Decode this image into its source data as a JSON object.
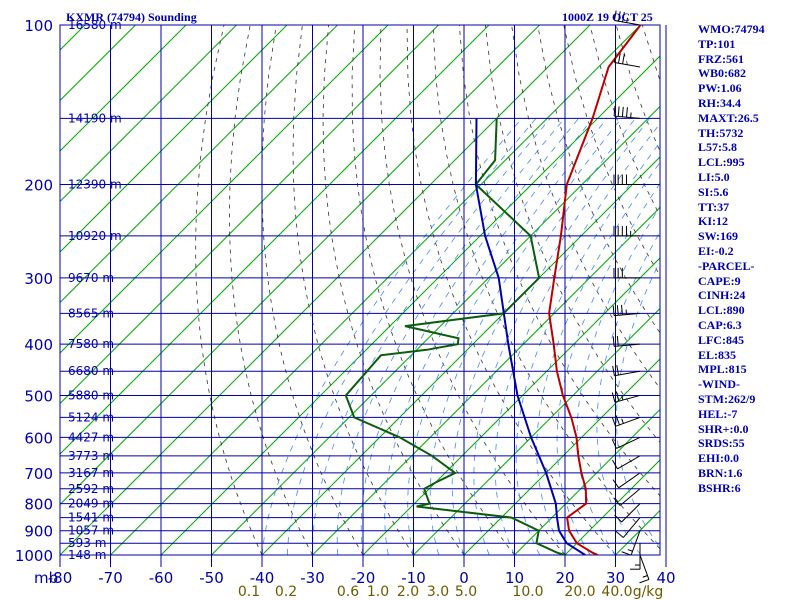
{
  "header": {
    "title": "KXMR (74794) Sounding",
    "datetime": "1000Z 19 OCT 25"
  },
  "stats": [
    "WMO:74794",
    "TP:101",
    "FRZ:561",
    "WB0:682",
    "PW:1.06",
    "RH:34.4",
    "MAXT:26.5",
    "TH:5732",
    "L57:5.8",
    "LCL:995",
    "LI:5.0",
    "SI:5.6",
    "TT:37",
    "KI:12",
    "SW:169",
    "EI:-0.2",
    "-PARCEL-",
    "CAPE:9",
    "CINH:24",
    "LCL:890",
    "CAP:6.3",
    "LFC:845",
    "EL:835",
    "MPL:815",
    "-WIND-",
    "STM:262/9",
    "HEL:-7",
    "SHR+:0.0",
    "SRDS:55",
    "EHI:0.0",
    "BRN:1.6",
    "BSHR:6"
  ],
  "chart_data": {
    "type": "line",
    "title": "KXMR (74794) Sounding",
    "xlabel": "",
    "ylabel": "mb",
    "y_scale": "log-pressure",
    "ylim": [
      1000,
      100
    ],
    "xlim": [
      -80,
      40
    ],
    "pressure_ticks": [
      {
        "p": 100,
        "label": "100"
      },
      {
        "p": 200,
        "label": "200"
      },
      {
        "p": 300,
        "label": "300"
      },
      {
        "p": 400,
        "label": "400"
      },
      {
        "p": 500,
        "label": "500"
      },
      {
        "p": 600,
        "label": "600"
      },
      {
        "p": 700,
        "label": "700"
      },
      {
        "p": 800,
        "label": "800"
      },
      {
        "p": 900,
        "label": "900"
      },
      {
        "p": 1000,
        "label": "1000"
      }
    ],
    "height_labels": [
      {
        "p": 100,
        "label": "16580 m"
      },
      {
        "p": 150,
        "label": "14190 m"
      },
      {
        "p": 200,
        "label": "12390 m"
      },
      {
        "p": 250,
        "label": "10920 m"
      },
      {
        "p": 300,
        "label": "9670 m"
      },
      {
        "p": 350,
        "label": "8565 m"
      },
      {
        "p": 400,
        "label": "7580 m"
      },
      {
        "p": 450,
        "label": "6680 m"
      },
      {
        "p": 500,
        "label": "5880 m"
      },
      {
        "p": 550,
        "label": "5124 m"
      },
      {
        "p": 600,
        "label": "4427 m"
      },
      {
        "p": 650,
        "label": "3773 m"
      },
      {
        "p": 700,
        "label": "3167 m"
      },
      {
        "p": 750,
        "label": "2592 m"
      },
      {
        "p": 800,
        "label": "2049 m"
      },
      {
        "p": 850,
        "label": "1541 m"
      },
      {
        "p": 900,
        "label": "1057 m"
      },
      {
        "p": 950,
        "label": "593 m"
      },
      {
        "p": 1000,
        "label": "148 m"
      }
    ],
    "temperature_ticks": [
      "-80",
      "-70",
      "-60",
      "-50",
      "-40",
      "-30",
      "-20",
      "-10",
      "0",
      "10",
      "20",
      "30",
      "40"
    ],
    "mixing_ratio_ticks": [
      {
        "value": 0.1,
        "label": "0.1"
      },
      {
        "value": 0.2,
        "label": "0.2"
      },
      {
        "value": 0.6,
        "label": "0.6"
      },
      {
        "value": 1.0,
        "label": "1.0"
      },
      {
        "value": 2.0,
        "label": "2.0"
      },
      {
        "value": 3.0,
        "label": "3.0"
      },
      {
        "value": 5.0,
        "label": "5.0"
      },
      {
        "value": 10.0,
        "label": "10.0"
      },
      {
        "value": 20.0,
        "label": "20.0"
      },
      {
        "value": 40.0,
        "label": "40.0"
      }
    ],
    "mixing_ratio_unit": "g/kg",
    "series": [
      {
        "color": "#bb0000",
        "points": [
          [
            100,
            -70
          ],
          [
            120,
            -68
          ],
          [
            150,
            -61
          ],
          [
            200,
            -53
          ],
          [
            250,
            -44
          ],
          [
            300,
            -37
          ],
          [
            350,
            -31
          ],
          [
            400,
            -24
          ],
          [
            450,
            -18
          ],
          [
            500,
            -12
          ],
          [
            550,
            -6
          ],
          [
            600,
            -1
          ],
          [
            650,
            3
          ],
          [
            700,
            7
          ],
          [
            750,
            11
          ],
          [
            800,
            14
          ],
          [
            850,
            13
          ],
          [
            900,
            16
          ],
          [
            950,
            20
          ],
          [
            990,
            25
          ],
          [
            1000,
            26.5
          ]
        ]
      },
      {
        "color": "#0b5d0b",
        "points": [
          [
            150,
            -80
          ],
          [
            180,
            -72
          ],
          [
            200,
            -71
          ],
          [
            250,
            -50
          ],
          [
            300,
            -40
          ],
          [
            350,
            -40
          ],
          [
            370,
            -57
          ],
          [
            390,
            -44
          ],
          [
            400,
            -43
          ],
          [
            410,
            -48
          ],
          [
            420,
            -56
          ],
          [
            500,
            -55
          ],
          [
            550,
            -49
          ],
          [
            600,
            -36
          ],
          [
            650,
            -26
          ],
          [
            700,
            -18
          ],
          [
            730,
            -20
          ],
          [
            750,
            -21
          ],
          [
            800,
            -17
          ],
          [
            810,
            -19
          ],
          [
            850,
            2
          ],
          [
            900,
            10
          ],
          [
            950,
            12
          ],
          [
            990,
            18
          ],
          [
            1000,
            20
          ]
        ]
      },
      {
        "color": "#0000aa",
        "points": [
          [
            150,
            -84
          ],
          [
            200,
            -71
          ],
          [
            250,
            -59
          ],
          [
            300,
            -48
          ],
          [
            400,
            -33
          ],
          [
            500,
            -21
          ],
          [
            600,
            -10
          ],
          [
            700,
            0
          ],
          [
            800,
            8
          ],
          [
            850,
            11
          ],
          [
            900,
            14
          ],
          [
            950,
            18
          ],
          [
            1000,
            24
          ]
        ]
      }
    ],
    "winds": [
      {
        "p": 100,
        "dir": 280,
        "spd": 25
      },
      {
        "p": 120,
        "dir": 280,
        "spd": 30
      },
      {
        "p": 150,
        "dir": 275,
        "spd": 35
      },
      {
        "p": 200,
        "dir": 270,
        "spd": 40
      },
      {
        "p": 250,
        "dir": 270,
        "spd": 35
      },
      {
        "p": 300,
        "dir": 270,
        "spd": 30
      },
      {
        "p": 350,
        "dir": 265,
        "spd": 25
      },
      {
        "p": 400,
        "dir": 265,
        "spd": 20
      },
      {
        "p": 450,
        "dir": 260,
        "spd": 20
      },
      {
        "p": 500,
        "dir": 255,
        "spd": 15
      },
      {
        "p": 550,
        "dir": 250,
        "spd": 15
      },
      {
        "p": 600,
        "dir": 245,
        "spd": 10
      },
      {
        "p": 650,
        "dir": 240,
        "spd": 10
      },
      {
        "p": 700,
        "dir": 235,
        "spd": 10
      },
      {
        "p": 750,
        "dir": 230,
        "spd": 10
      },
      {
        "p": 800,
        "dir": 225,
        "spd": 10
      },
      {
        "p": 850,
        "dir": 220,
        "spd": 10
      },
      {
        "p": 900,
        "dir": 200,
        "spd": 5
      },
      {
        "p": 950,
        "dir": 180,
        "spd": 5
      },
      {
        "p": 1000,
        "dir": 160,
        "spd": 5
      }
    ],
    "colors": {
      "axis": "#0000aa",
      "isotherm": "#00aa00",
      "dry_adiabat": "#333333",
      "moist_adiabat": "#4488ff",
      "wind_barb": "#000000"
    }
  }
}
